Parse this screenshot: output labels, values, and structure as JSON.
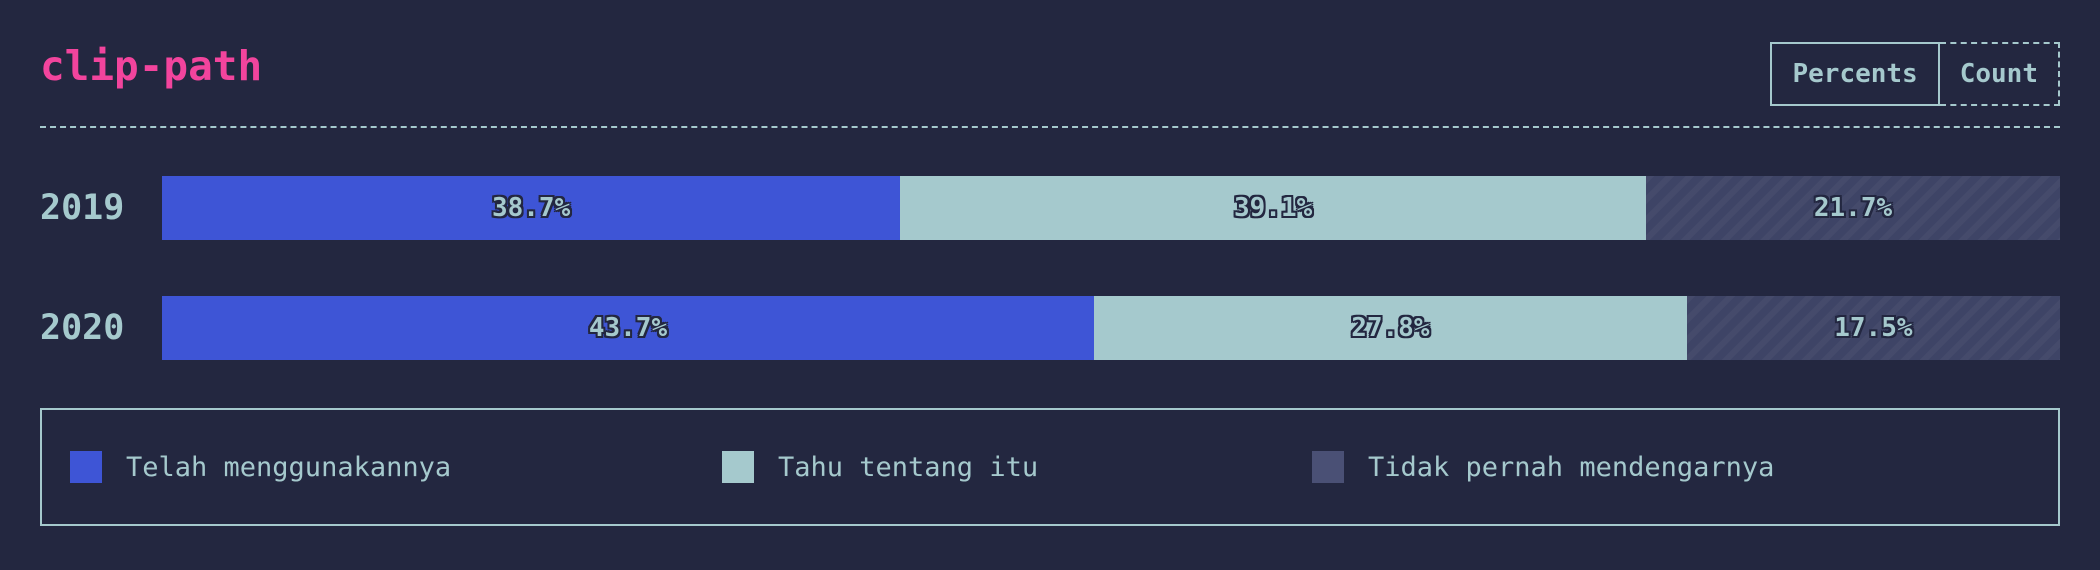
{
  "header": {
    "title": "clip-path",
    "toggle": {
      "percents_label": "Percents",
      "count_label": "Count"
    }
  },
  "chart_data": {
    "type": "bar",
    "orientation": "horizontal",
    "stacked": true,
    "categories": [
      "2019",
      "2020"
    ],
    "series": [
      {
        "name": "Telah menggunakannya",
        "color": "#3e55d6",
        "values": [
          38.7,
          43.7
        ],
        "labels": [
          "38.7%",
          "43.7%"
        ]
      },
      {
        "name": "Tahu tentang itu",
        "color": "#a5c9cd",
        "values": [
          39.1,
          27.8
        ],
        "labels": [
          "39.1%",
          "27.8%"
        ]
      },
      {
        "name": "Tidak pernah mendengarnya",
        "color": "#3e4466",
        "values": [
          21.7,
          17.5
        ],
        "labels": [
          "21.7%",
          "17.5%"
        ]
      }
    ],
    "legend_position": "bottom",
    "grid": false
  }
}
